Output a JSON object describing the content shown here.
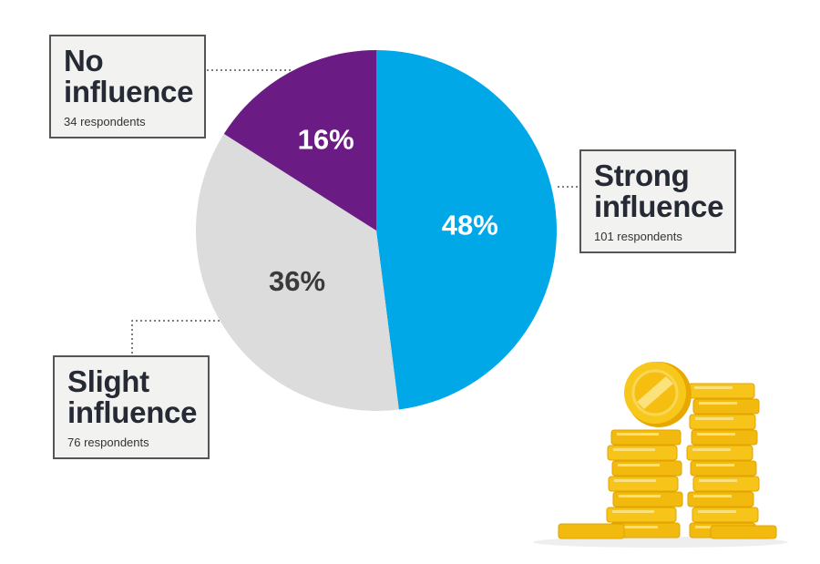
{
  "chart_data": {
    "type": "pie",
    "slices": [
      {
        "label": "Strong influence",
        "value": 48,
        "display": "48%",
        "respondents": "101 respondents",
        "color": "#00a8e8",
        "label_color": "#ffffff"
      },
      {
        "label": "Slight influence",
        "value": 36,
        "display": "36%",
        "respondents": "76 respondents",
        "color": "#dcdcdc",
        "label_color": "#3a3a3a"
      },
      {
        "label": "No influence",
        "value": 16,
        "display": "16%",
        "respondents": "34 respondents",
        "color": "#6b1c84",
        "label_color": "#ffffff"
      }
    ]
  },
  "callouts": {
    "no": {
      "title": "No\ninfluence",
      "sub": "34 respondents"
    },
    "strong": {
      "title": "Strong\ninfluence",
      "sub": "101 respondents"
    },
    "slight": {
      "title": "Slight\ninfluence",
      "sub": "76 respondents"
    }
  },
  "illustration": {
    "icon": "gold-coins-stack-icon",
    "coin_color": "#f5c518"
  }
}
